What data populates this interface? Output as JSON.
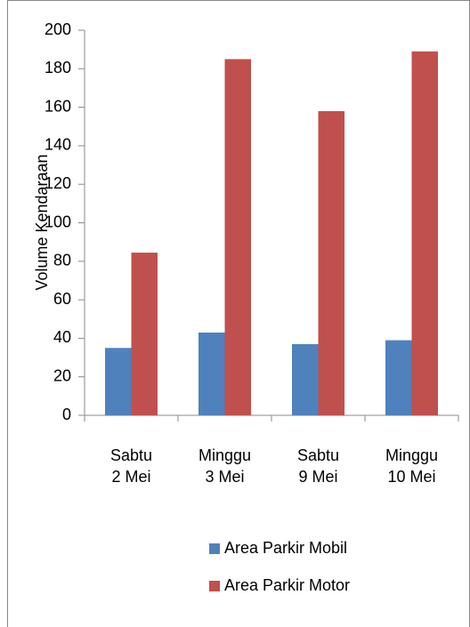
{
  "chart_data": {
    "type": "bar",
    "categories": [
      "Sabtu\n2 Mei",
      "Minggu\n3 Mei",
      "Sabtu\n9 Mei",
      "Minggu\n10 Mei"
    ],
    "series": [
      {
        "name": "Area Parkir Mobil",
        "color": "#4f81bd",
        "values": [
          35,
          43,
          37,
          39
        ]
      },
      {
        "name": "Area Parkir Motor",
        "color": "#c0504d",
        "values": [
          84.5,
          185,
          158,
          189
        ]
      }
    ],
    "y_label": "Volume Kendaraan",
    "ylim": [
      0,
      200
    ],
    "yticks": [
      0,
      20,
      40,
      60,
      80,
      100,
      120,
      140,
      160,
      180,
      200
    ],
    "legend": "bottom"
  }
}
